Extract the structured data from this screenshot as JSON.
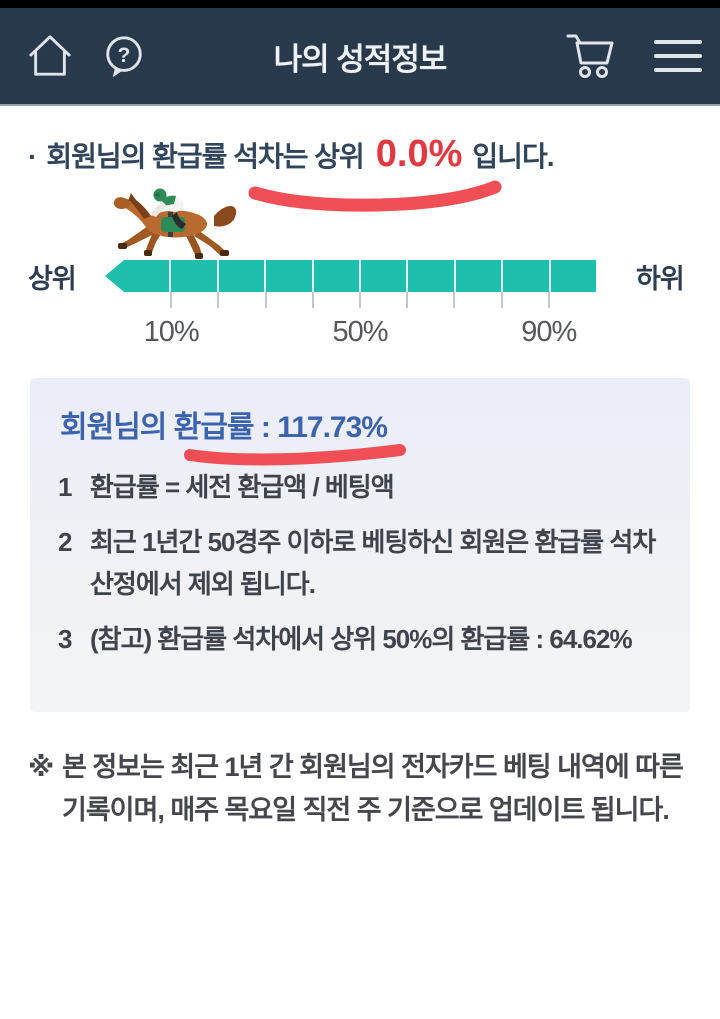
{
  "header": {
    "title": "나의 성적정보",
    "icons": {
      "home": "home-icon",
      "help": "help-icon",
      "cart": "cart-icon",
      "menu": "hamburger-menu-icon"
    }
  },
  "rank_sentence": {
    "bullet": "·",
    "prefix": "회원님의 환급률 석차는 상위",
    "value": "0.0%",
    "suffix": "입니다."
  },
  "rank_bar": {
    "left_label": "상위",
    "right_label": "하위",
    "segments": 10,
    "tick_positions_pct": [
      10,
      20,
      30,
      40,
      50,
      60,
      70,
      80,
      90
    ],
    "axis_labels": [
      {
        "text": "10%",
        "pos_pct": 10
      },
      {
        "text": "50%",
        "pos_pct": 50
      },
      {
        "text": "90%",
        "pos_pct": 90
      }
    ],
    "marker": "horse-jockey-at-0-percent"
  },
  "info_box": {
    "title": "회원님의 환급률 : 117.73%",
    "items": [
      {
        "num": "1",
        "text": "환급률 = 세전 환급액 / 베팅액"
      },
      {
        "num": "2",
        "text": "최근 1년간 50경주 이하로 베팅하신 회원은 환급률 석차 산정에서 제외 됩니다."
      },
      {
        "num": "3",
        "text": "(참고) 환급률 석차에서 상위 50%의 환급률 : 64.62%"
      }
    ]
  },
  "footnote": {
    "marker": "※",
    "text": "본 정보는 최근 1년 간 회원님의 전자카드 베팅 내역에 따른 기록이며, 매주 목요일 직전 주 기준으로 업데이트 됩니다."
  },
  "colors": {
    "header_bg": "#28394b",
    "bar_teal": "#1fbfae",
    "accent_red": "#e23940",
    "marker_red": "#ef4146",
    "heading_blue": "#3c63ad",
    "body_navy": "#31455c",
    "box_bg": "#eff1f7"
  }
}
